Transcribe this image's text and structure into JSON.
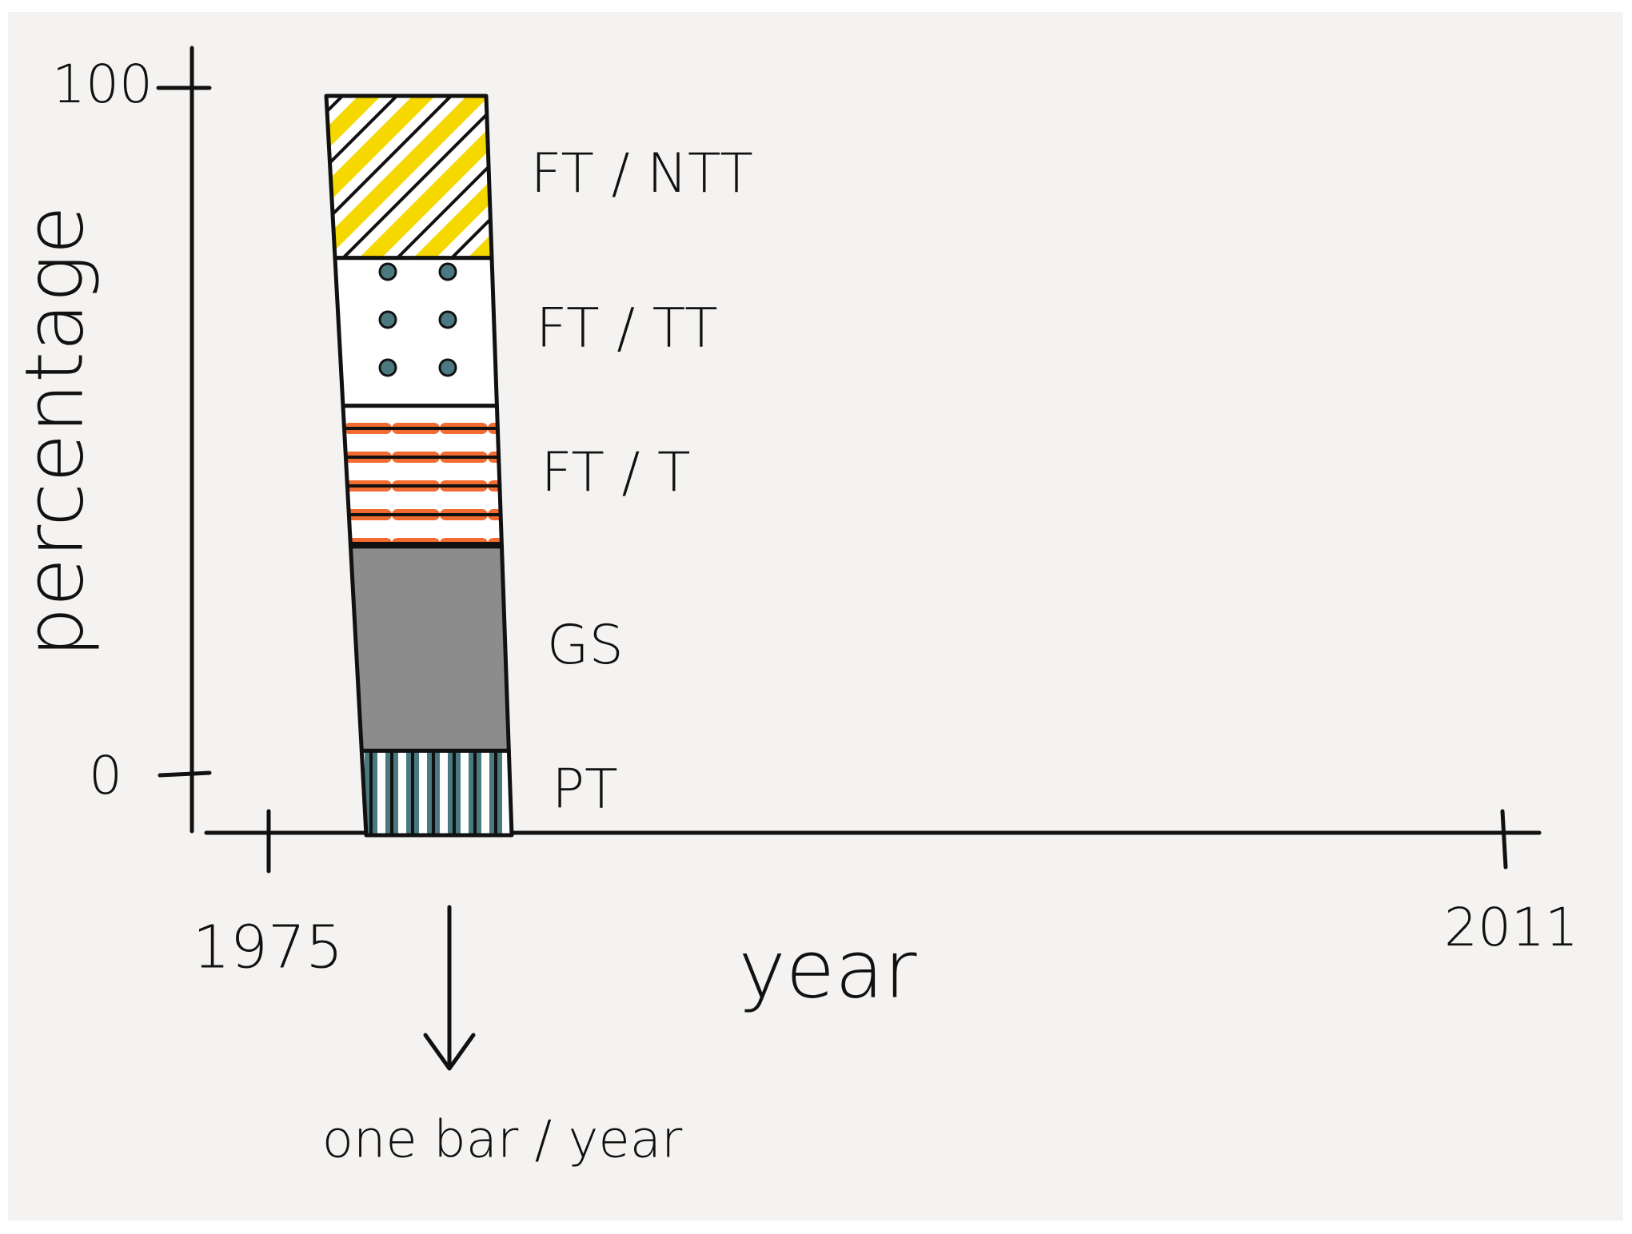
{
  "chart_data": {
    "type": "bar",
    "stacked": true,
    "xlabel": "year",
    "ylabel": "percentage",
    "xlim": [
      1975,
      2011
    ],
    "ylim": [
      0,
      100
    ],
    "x_ticks": [
      "1975",
      "2011"
    ],
    "y_ticks": [
      "0",
      "100"
    ],
    "annotation": "one bar / year",
    "categories": [
      ""
    ],
    "series": [
      {
        "name": "PT",
        "values": [
          12
        ],
        "fill": "#4a7a80",
        "pattern": "vertical-stripes"
      },
      {
        "name": "GS",
        "values": [
          29
        ],
        "fill": "#8c8c8c",
        "pattern": "solid"
      },
      {
        "name": "FT / T",
        "values": [
          20
        ],
        "fill": "#f26b30",
        "pattern": "horizontal-stripes"
      },
      {
        "name": "FT / TT",
        "values": [
          21
        ],
        "fill": "#4a7a80",
        "pattern": "dots"
      },
      {
        "name": "FT / NTT",
        "values": [
          23
        ],
        "fill": "#f5d800",
        "pattern": "diagonal-hatch"
      }
    ]
  }
}
